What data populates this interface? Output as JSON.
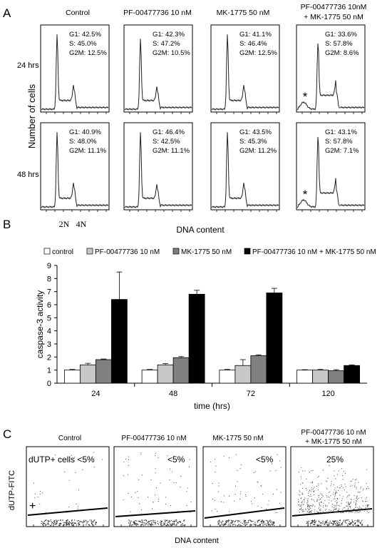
{
  "panel_a": {
    "letter": "A",
    "column_titles": [
      "Control",
      "PF-00477736 10 nM",
      "MK-1775 50 nM",
      "PF-00477736 10nM",
      "+ MK-1775 50 nM"
    ],
    "row_labels": [
      "24 hrs",
      "48 hrs"
    ],
    "ylabel": "Number of cells",
    "xlabel": "DNA content",
    "x_ticks": [
      "2N",
      "4N"
    ],
    "asterisk": "*",
    "stats": [
      [
        [
          "G1: 42.5%",
          "S: 45.0%",
          "G2M: 12.5%"
        ],
        [
          "G1: 42.3%",
          "S: 47.2%",
          "G2M: 10.5%"
        ],
        [
          "G1: 41.1%",
          "S: 46.4%",
          "G2M: 12.5%"
        ],
        [
          "G1: 33.6%",
          "S: 57.8%",
          "G2M: 8.6%"
        ]
      ],
      [
        [
          "G1: 40.9%",
          "S: 48.0%",
          "G2M: 11.1%"
        ],
        [
          "G1: 46.4%",
          "S: 42.5%",
          "G2M: 11.1%"
        ],
        [
          "G1: 43.5%",
          "S: 45.3%",
          "G2M: 11.2%"
        ],
        [
          "G1: 43.1%",
          "S: 57.8%",
          "G2M: 7.1%"
        ]
      ]
    ]
  },
  "panel_c": {
    "letter": "C",
    "titles": [
      "Control",
      "PF-00477736  10 nM",
      "MK-1775 50 nM",
      "PF-00477736 10 nM",
      "+ MK-1775 50 nM"
    ],
    "annotations": [
      "dUTP+ cells <5%",
      "<5%",
      "<5%",
      "25%"
    ],
    "plus": "+",
    "ylabel": "dUTP-FITC",
    "xlabel": "DNA content"
  },
  "chart_data": [
    {
      "type": "bar",
      "panel": "B",
      "categories": [
        "24",
        "48",
        "72",
        "120"
      ],
      "series": [
        {
          "name": "control",
          "color": "#ffffff",
          "values": [
            1.0,
            1.0,
            1.0,
            1.0
          ],
          "errors": [
            0.05,
            0.05,
            0.05,
            0.03
          ]
        },
        {
          "name": "PF-00477736 10 nM",
          "color": "#c8c8c8",
          "values": [
            1.4,
            1.4,
            1.35,
            1.0
          ],
          "errors": [
            0.12,
            0.1,
            0.45,
            0.05
          ]
        },
        {
          "name": "MK-1775 50 nM",
          "color": "#808080",
          "values": [
            1.8,
            1.95,
            2.1,
            0.95
          ],
          "errors": [
            0.05,
            0.08,
            0.07,
            0.08
          ]
        },
        {
          "name": "PF-00477736 10 nM + MK-1775 50 nM",
          "color": "#000000",
          "values": [
            6.4,
            6.8,
            6.9,
            1.35
          ],
          "errors": [
            2.1,
            0.3,
            0.35,
            0.05
          ]
        }
      ],
      "xlabel": "time (hrs)",
      "ylabel": "caspase-3 activity",
      "ylim": [
        0,
        9
      ],
      "yticks": [
        0,
        1,
        2,
        3,
        4,
        5,
        6,
        7,
        8,
        9
      ],
      "legend": "top",
      "grid": false
    }
  ]
}
